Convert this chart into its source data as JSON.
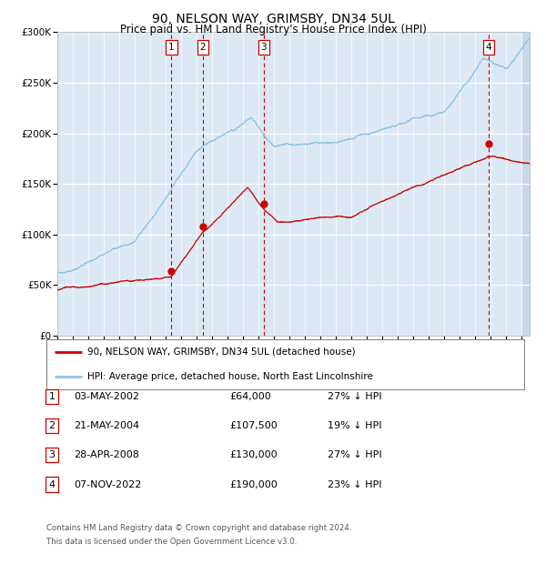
{
  "title": "90, NELSON WAY, GRIMSBY, DN34 5UL",
  "subtitle": "Price paid vs. HM Land Registry's House Price Index (HPI)",
  "title_fontsize": 10,
  "subtitle_fontsize": 8.5,
  "background_color": "#ffffff",
  "plot_bg_color": "#dce9f5",
  "hpi_color": "#8cc4e8",
  "price_color": "#cc0000",
  "marker_color": "#cc0000",
  "vline_color": "#cc0000",
  "ylim": [
    0,
    300000
  ],
  "yticks": [
    0,
    50000,
    100000,
    150000,
    200000,
    250000,
    300000
  ],
  "ytick_labels": [
    "£0",
    "£50K",
    "£100K",
    "£150K",
    "£200K",
    "£250K",
    "£300K"
  ],
  "xlim_start": 1995.0,
  "xlim_end": 2025.5,
  "xticks": [
    1995,
    1996,
    1997,
    1998,
    1999,
    2000,
    2001,
    2002,
    2003,
    2004,
    2005,
    2006,
    2007,
    2008,
    2009,
    2010,
    2011,
    2012,
    2013,
    2014,
    2015,
    2016,
    2017,
    2018,
    2019,
    2020,
    2021,
    2022,
    2023,
    2024,
    2025
  ],
  "transactions": [
    {
      "num": 1,
      "date": "03-MAY-2002",
      "year": 2002.37,
      "price": 64000,
      "label": "1"
    },
    {
      "num": 2,
      "date": "21-MAY-2004",
      "year": 2004.39,
      "price": 107500,
      "label": "2"
    },
    {
      "num": 3,
      "date": "28-APR-2008",
      "year": 2008.33,
      "price": 130000,
      "label": "3"
    },
    {
      "num": 4,
      "date": "07-NOV-2022",
      "year": 2022.85,
      "price": 190000,
      "label": "4"
    }
  ],
  "legend_property_label": "90, NELSON WAY, GRIMSBY, DN34 5UL (detached house)",
  "legend_hpi_label": "HPI: Average price, detached house, North East Lincolnshire",
  "footer_line1": "Contains HM Land Registry data © Crown copyright and database right 2024.",
  "footer_line2": "This data is licensed under the Open Government Licence v3.0.",
  "table_rows": [
    [
      "1",
      "03-MAY-2002",
      "£64,000",
      "27% ↓ HPI"
    ],
    [
      "2",
      "21-MAY-2004",
      "£107,500",
      "19% ↓ HPI"
    ],
    [
      "3",
      "28-APR-2008",
      "£130,000",
      "27% ↓ HPI"
    ],
    [
      "4",
      "07-NOV-2022",
      "£190,000",
      "23% ↓ HPI"
    ]
  ]
}
